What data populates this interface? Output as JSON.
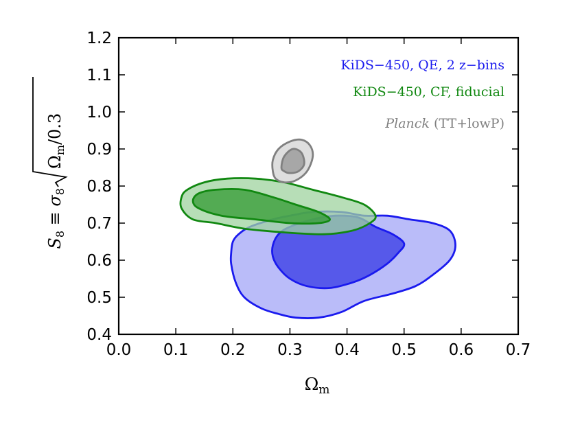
{
  "chart_data": {
    "type": "contour",
    "xlabel": "Ω",
    "xlabel_sub": "m",
    "ylabel_parts": {
      "s": "S",
      "s_sub": "8",
      "equiv": " ≡ ",
      "sigma": "σ",
      "sigma_sub": "8",
      "omega": "Ω",
      "omega_sub": "m",
      "tail": "/0.3"
    },
    "xlim": [
      0.0,
      0.7
    ],
    "ylim": [
      0.4,
      1.2
    ],
    "xticks": [
      "0.0",
      "0.1",
      "0.2",
      "0.3",
      "0.4",
      "0.5",
      "0.6",
      "0.7"
    ],
    "yticks": [
      "0.4",
      "0.5",
      "0.6",
      "0.7",
      "0.8",
      "0.9",
      "1.0",
      "1.1",
      "1.2"
    ],
    "grid": false,
    "legend_placement": "top-right",
    "series": [
      {
        "name": "KiDS−450, QE, 2 z−bins",
        "color": "#1a1aee",
        "fill_outer": "#a3a6f7",
        "fill_inner": "#3d40e6",
        "contour_95": [
          [
            0.2,
            0.65
          ],
          [
            0.21,
            0.67
          ],
          [
            0.23,
            0.69
          ],
          [
            0.27,
            0.71
          ],
          [
            0.3,
            0.72
          ],
          [
            0.34,
            0.73
          ],
          [
            0.39,
            0.73
          ],
          [
            0.43,
            0.72
          ],
          [
            0.47,
            0.72
          ],
          [
            0.51,
            0.71
          ],
          [
            0.55,
            0.7
          ],
          [
            0.58,
            0.68
          ],
          [
            0.59,
            0.64
          ],
          [
            0.58,
            0.6
          ],
          [
            0.55,
            0.56
          ],
          [
            0.52,
            0.53
          ],
          [
            0.48,
            0.51
          ],
          [
            0.43,
            0.49
          ],
          [
            0.39,
            0.46
          ],
          [
            0.35,
            0.445
          ],
          [
            0.31,
            0.445
          ],
          [
            0.28,
            0.455
          ],
          [
            0.25,
            0.47
          ],
          [
            0.22,
            0.5
          ],
          [
            0.205,
            0.54
          ],
          [
            0.197,
            0.59
          ],
          [
            0.197,
            0.62
          ]
        ],
        "contour_68": [
          [
            0.27,
            0.64
          ],
          [
            0.28,
            0.67
          ],
          [
            0.3,
            0.69
          ],
          [
            0.34,
            0.71
          ],
          [
            0.38,
            0.72
          ],
          [
            0.42,
            0.715
          ],
          [
            0.45,
            0.69
          ],
          [
            0.48,
            0.67
          ],
          [
            0.5,
            0.645
          ],
          [
            0.49,
            0.62
          ],
          [
            0.47,
            0.59
          ],
          [
            0.44,
            0.56
          ],
          [
            0.41,
            0.54
          ],
          [
            0.37,
            0.525
          ],
          [
            0.33,
            0.53
          ],
          [
            0.3,
            0.55
          ],
          [
            0.28,
            0.58
          ],
          [
            0.27,
            0.61
          ]
        ]
      },
      {
        "name": "KiDS−450, CF, fiducial",
        "color": "#118811",
        "fill_outer": "#9fd39f",
        "fill_inner": "#3a9e3a",
        "contour_95": [
          [
            0.11,
            0.74
          ],
          [
            0.11,
            0.77
          ],
          [
            0.12,
            0.79
          ],
          [
            0.15,
            0.81
          ],
          [
            0.19,
            0.82
          ],
          [
            0.24,
            0.82
          ],
          [
            0.29,
            0.81
          ],
          [
            0.34,
            0.79
          ],
          [
            0.39,
            0.77
          ],
          [
            0.43,
            0.75
          ],
          [
            0.45,
            0.72
          ],
          [
            0.44,
            0.7
          ],
          [
            0.41,
            0.68
          ],
          [
            0.36,
            0.67
          ],
          [
            0.29,
            0.675
          ],
          [
            0.22,
            0.685
          ],
          [
            0.17,
            0.7
          ],
          [
            0.13,
            0.71
          ]
        ],
        "contour_68": [
          [
            0.13,
            0.76
          ],
          [
            0.14,
            0.78
          ],
          [
            0.17,
            0.79
          ],
          [
            0.22,
            0.79
          ],
          [
            0.27,
            0.77
          ],
          [
            0.31,
            0.75
          ],
          [
            0.35,
            0.73
          ],
          [
            0.37,
            0.71
          ],
          [
            0.35,
            0.7
          ],
          [
            0.3,
            0.7
          ],
          [
            0.24,
            0.71
          ],
          [
            0.18,
            0.72
          ],
          [
            0.14,
            0.74
          ]
        ]
      },
      {
        "name_italic": "Planck",
        "name_rest": " (TT+lowP)",
        "color": "#808080",
        "fill_outer": "#d3d3d3",
        "fill_inner": "#999999",
        "contour_95": [
          [
            0.27,
            0.84
          ],
          [
            0.27,
            0.87
          ],
          [
            0.28,
            0.9
          ],
          [
            0.3,
            0.92
          ],
          [
            0.32,
            0.925
          ],
          [
            0.335,
            0.91
          ],
          [
            0.34,
            0.88
          ],
          [
            0.33,
            0.84
          ],
          [
            0.31,
            0.815
          ],
          [
            0.29,
            0.81
          ],
          [
            0.275,
            0.82
          ]
        ],
        "contour_68": [
          [
            0.285,
            0.85
          ],
          [
            0.29,
            0.88
          ],
          [
            0.305,
            0.9
          ],
          [
            0.32,
            0.89
          ],
          [
            0.325,
            0.86
          ],
          [
            0.315,
            0.84
          ],
          [
            0.3,
            0.835
          ],
          [
            0.29,
            0.84
          ]
        ]
      }
    ]
  }
}
